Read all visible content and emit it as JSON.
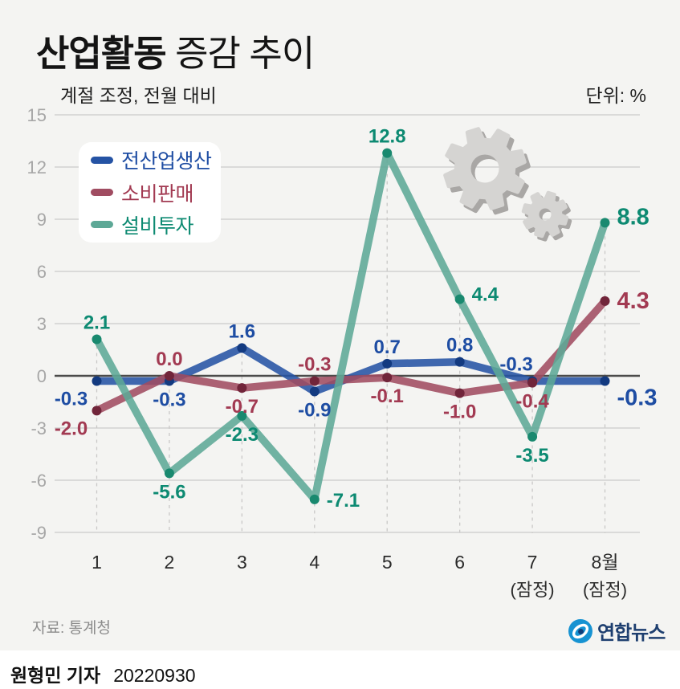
{
  "header": {
    "title_bold": "산업활동",
    "title_rest": " 증감 추이",
    "subtitle": "계절 조정, 전월 대비",
    "unit": "단위: %"
  },
  "chart_data": {
    "type": "line",
    "title": "산업활동 증감 추이",
    "xlabel": "",
    "ylabel": "%",
    "ylim": [
      -9,
      15
    ],
    "yticks": [
      15,
      12,
      9,
      6,
      3,
      0,
      -3,
      -6,
      -9
    ],
    "grid": true,
    "legend_position": "top-left",
    "categories": [
      "1",
      "2",
      "3",
      "4",
      "5",
      "6",
      "7",
      "8월"
    ],
    "category_notes": [
      "",
      "",
      "",
      "",
      "",
      "",
      "(잠정)",
      "(잠정)"
    ],
    "series": [
      {
        "name": "전산업생산",
        "color": "#2553a4",
        "marker_color": "#133a80",
        "label_color": "#1e4da3",
        "values": [
          -0.3,
          -0.3,
          1.6,
          -0.9,
          0.7,
          0.8,
          -0.3,
          -0.3
        ],
        "label_pos": [
          "below-left",
          "below",
          "above",
          "below",
          "above",
          "above",
          "above-left",
          "right-down"
        ]
      },
      {
        "name": "소비판매",
        "color": "#a04c61",
        "marker_color": "#71253a",
        "label_color": "#a23a52",
        "values": [
          -2.0,
          0.0,
          -0.7,
          -0.3,
          -0.1,
          -1.0,
          -0.4,
          4.3
        ],
        "label_pos": [
          "below-left",
          "above",
          "below",
          "above",
          "below",
          "below",
          "below",
          "right"
        ]
      },
      {
        "name": "설비투자",
        "color": "#5da896",
        "marker_color": "#19896f",
        "label_color": "#0d8a72",
        "values": [
          2.1,
          -5.6,
          -2.3,
          -7.1,
          12.8,
          4.4,
          -3.5,
          8.8
        ],
        "label_pos": [
          "above",
          "below",
          "below",
          "right",
          "above",
          "right-up",
          "below",
          "right-up"
        ]
      }
    ]
  },
  "icons": {
    "gear_large": "gear-icon",
    "gear_small": "gear-icon",
    "logo_icon": "yonhap-logo-icon"
  },
  "footer": {
    "source": "자료: 통계청",
    "logo_text": "연합뉴스",
    "byline_name": "원형민 기자",
    "byline_date": "20220930"
  }
}
